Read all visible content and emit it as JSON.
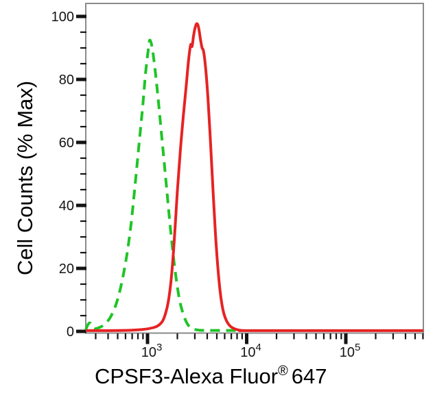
{
  "figure": {
    "background": "#ffffff"
  },
  "chart_data": {
    "type": "line",
    "subtype": "flow-cytometry-overlay-histogram",
    "title": "",
    "xlabel": "CPSF3-Alexa Fluor® 647",
    "xlabel_parts": {
      "pre": "CPSF3-Alexa Fluor",
      "sup": "®",
      "post": "647"
    },
    "ylabel": "Cell Counts (% Max)",
    "x_scale": "log10",
    "x_range_log10": [
      2.377,
      5.78
    ],
    "x_tick_base": "10",
    "x_tick_exponents": [
      3,
      4,
      5
    ],
    "x_minor_tick_mantissas": [
      2,
      3,
      4,
      5,
      6,
      7,
      8,
      9
    ],
    "ylim": [
      0,
      104
    ],
    "y_ticks": [
      0,
      20,
      40,
      60,
      80,
      100
    ],
    "y_minor_tick_step": 5,
    "grid": false,
    "legend": "none",
    "colors": {
      "axis_box": "#8a8a8a",
      "tick": "#141414",
      "text": "#000000",
      "green_series": "#1fc426",
      "red_series": "#e62323"
    },
    "series": [
      {
        "name": "green-dashed-curve",
        "color": "#1fc426",
        "line_style": "dashed",
        "line_width": 4,
        "points": [
          [
            2.377,
            0.4
          ],
          [
            2.4,
            2.2
          ],
          [
            2.425,
            2.6
          ],
          [
            2.46,
            0.9
          ],
          [
            2.52,
            1.3
          ],
          [
            2.57,
            2.4
          ],
          [
            2.62,
            4.2
          ],
          [
            2.67,
            7.5
          ],
          [
            2.71,
            11.5
          ],
          [
            2.75,
            17
          ],
          [
            2.79,
            24
          ],
          [
            2.83,
            33
          ],
          [
            2.87,
            45
          ],
          [
            2.91,
            58
          ],
          [
            2.95,
            71
          ],
          [
            2.98,
            82
          ],
          [
            3.01,
            90
          ],
          [
            3.025,
            92.5
          ],
          [
            3.05,
            89.5
          ],
          [
            3.08,
            82
          ],
          [
            3.11,
            73
          ],
          [
            3.14,
            63
          ],
          [
            3.17,
            53
          ],
          [
            3.2,
            43
          ],
          [
            3.23,
            33
          ],
          [
            3.26,
            24
          ],
          [
            3.29,
            16.5
          ],
          [
            3.32,
            10.5
          ],
          [
            3.35,
            6.5
          ],
          [
            3.38,
            3.8
          ],
          [
            3.41,
            2.0
          ],
          [
            3.45,
            0.9
          ],
          [
            3.52,
            0.4
          ],
          [
            3.62,
            0.3
          ],
          [
            3.9,
            0.3
          ]
        ]
      },
      {
        "name": "red-solid-curve",
        "color": "#e62323",
        "line_style": "solid",
        "line_width": 4,
        "points": [
          [
            2.377,
            0.25
          ],
          [
            2.75,
            0.3
          ],
          [
            2.95,
            0.6
          ],
          [
            3.06,
            1.2
          ],
          [
            3.11,
            1.9
          ],
          [
            3.15,
            3.2
          ],
          [
            3.18,
            5.5
          ],
          [
            3.21,
            9.5
          ],
          [
            3.24,
            17
          ],
          [
            3.27,
            29
          ],
          [
            3.3,
            44
          ],
          [
            3.33,
            57
          ],
          [
            3.36,
            68
          ],
          [
            3.39,
            78
          ],
          [
            3.415,
            86.5
          ],
          [
            3.435,
            91
          ],
          [
            3.45,
            90.5
          ],
          [
            3.465,
            94
          ],
          [
            3.485,
            97
          ],
          [
            3.5,
            97.7
          ],
          [
            3.515,
            96.5
          ],
          [
            3.535,
            92.5
          ],
          [
            3.55,
            90
          ],
          [
            3.565,
            89
          ],
          [
            3.585,
            84
          ],
          [
            3.61,
            74
          ],
          [
            3.635,
            60
          ],
          [
            3.66,
            45
          ],
          [
            3.685,
            31
          ],
          [
            3.71,
            20
          ],
          [
            3.735,
            12
          ],
          [
            3.76,
            7
          ],
          [
            3.79,
            3.8
          ],
          [
            3.83,
            1.8
          ],
          [
            3.88,
            0.8
          ],
          [
            3.95,
            0.3
          ],
          [
            4.1,
            0.25
          ],
          [
            5.78,
            0.25
          ]
        ]
      }
    ]
  }
}
